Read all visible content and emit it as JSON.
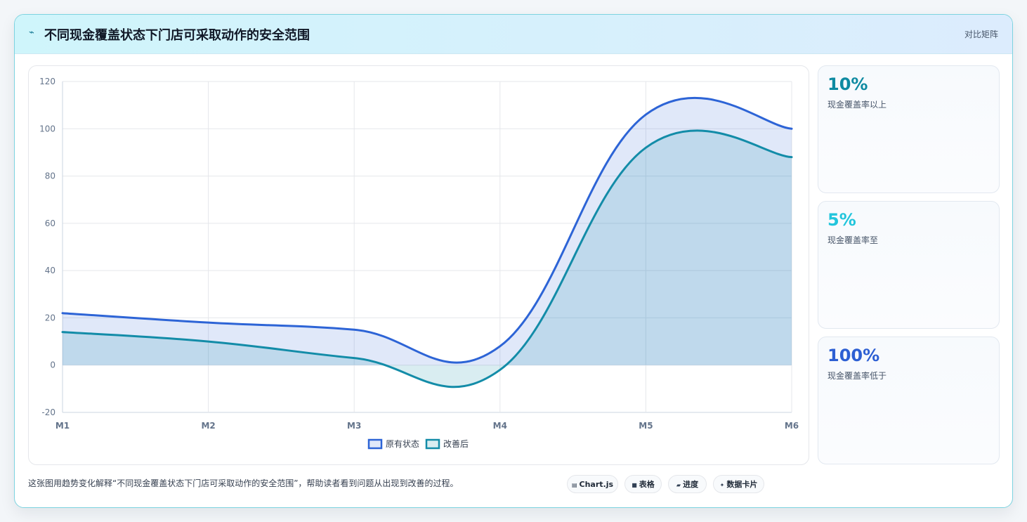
{
  "header": {
    "title": "不同现金覆盖状态下门店可采取动作的安全范围",
    "tag": "对比矩阵"
  },
  "chart_data": {
    "type": "area",
    "categories": [
      "M1",
      "M2",
      "M3",
      "M4",
      "M5",
      "M6"
    ],
    "series": [
      {
        "name": "原有状态",
        "values": [
          22,
          18,
          15,
          8,
          106,
          100
        ],
        "color": "#2d64d6"
      },
      {
        "name": "改善后",
        "values": [
          14,
          10,
          3,
          -2,
          92,
          88
        ],
        "color": "#138ca8"
      }
    ],
    "ylim": [
      -20,
      120
    ],
    "yticks": [
      "-20",
      "0",
      "20",
      "40",
      "60",
      "80",
      "100",
      "120"
    ],
    "grid": true,
    "legend": "bottom",
    "xlabel": "",
    "ylabel": ""
  },
  "stats": [
    {
      "value": "10%",
      "label": "现金覆盖率以上",
      "color": "#0e8aa1"
    },
    {
      "value": "5%",
      "label": "现金覆盖率至",
      "color": "#22c5dc"
    },
    {
      "value": "100%",
      "label": "现金覆盖率低于",
      "color": "#2d5fd3"
    }
  ],
  "caption": "这张图用趋势变化解释“不同现金覆盖状态下门店可采取动作的安全范围”，帮助读者看到问题从出现到改善的过程。",
  "chips": [
    {
      "icon": "▤",
      "label": "Chart.js"
    },
    {
      "icon": "■",
      "label": "表格"
    },
    {
      "icon": "▰",
      "label": "进度"
    },
    {
      "icon": "✦",
      "label": "数据卡片"
    }
  ]
}
